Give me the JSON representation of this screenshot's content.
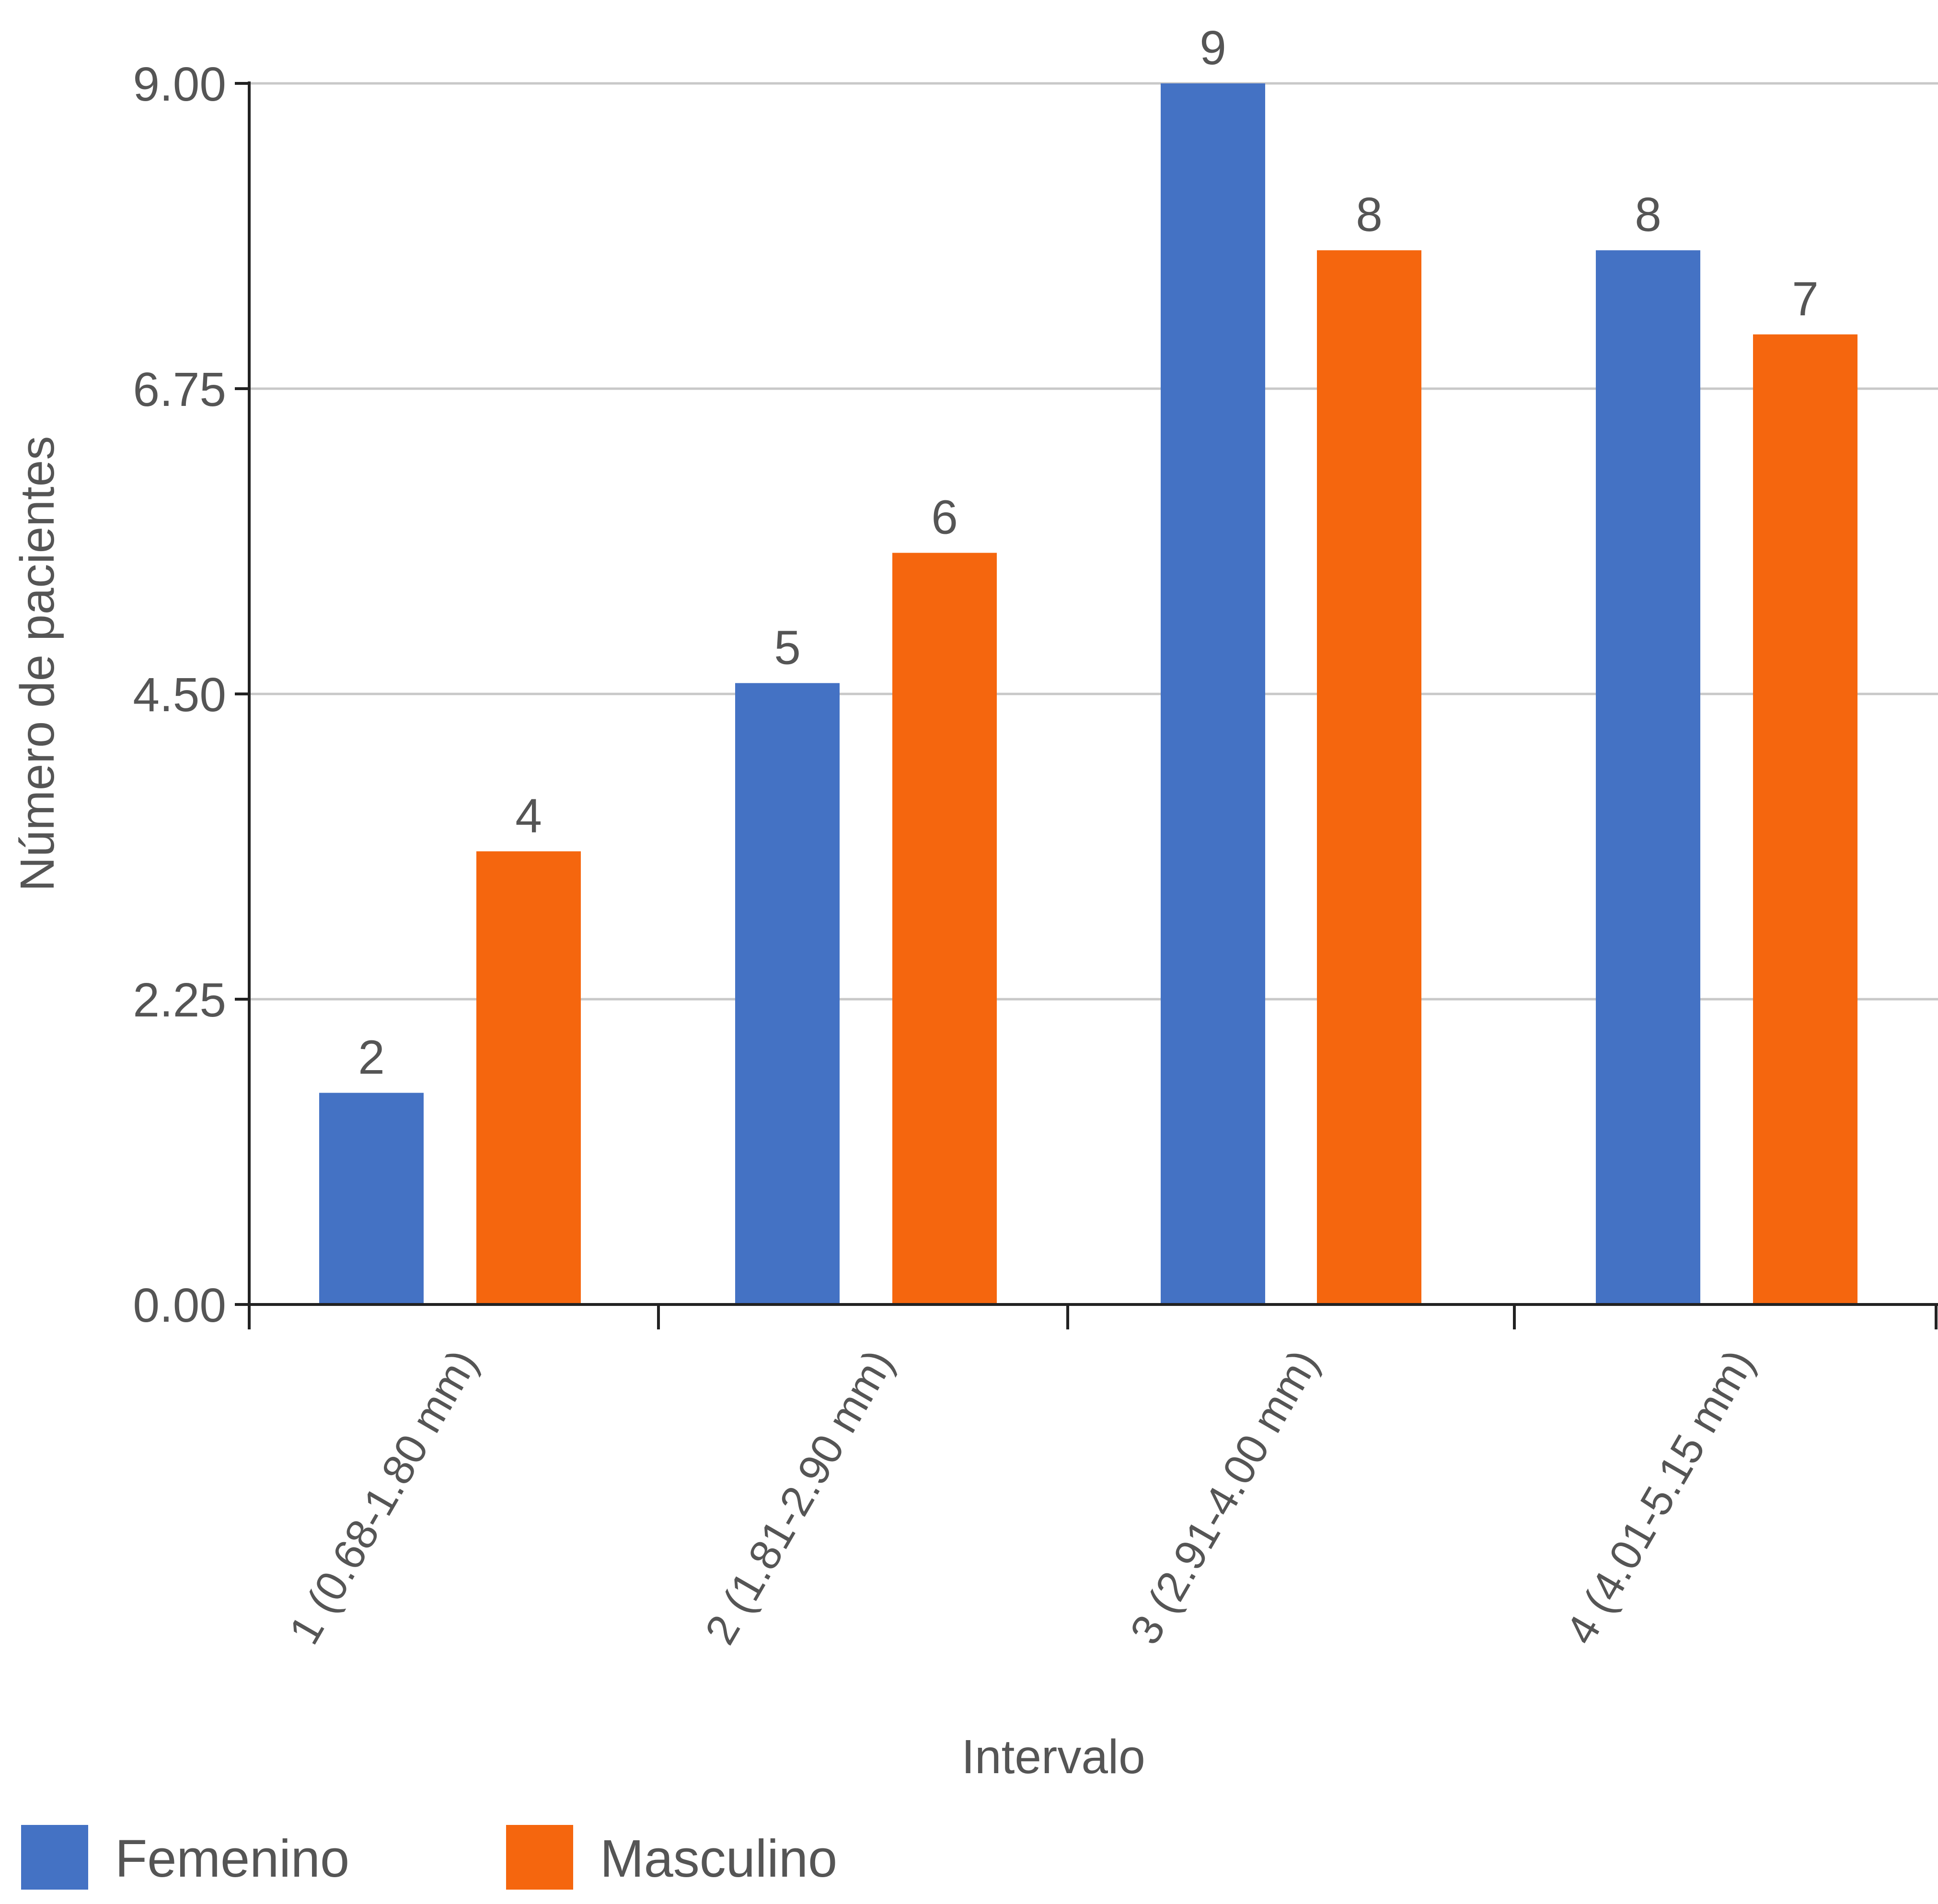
{
  "chart_data": {
    "type": "bar",
    "xlabel": "Intervalo",
    "ylabel": "Número de pacientes",
    "categories": [
      "1 (0.68-1.80 mm)",
      "2 (1.81-2.90 mm)",
      "3 (2.91-4.00 mm)",
      "4 (4.01-5.15 mm)"
    ],
    "series": [
      {
        "name": "Femenino",
        "color": "#4472C4",
        "values": [
          2,
          5,
          9,
          8
        ]
      },
      {
        "name": "Masculino",
        "color": "#F5660E",
        "values": [
          4,
          6,
          8,
          7
        ]
      }
    ],
    "bar_heights": [
      [
        1.56,
        4.58,
        9.0,
        7.77
      ],
      [
        3.34,
        5.54,
        7.77,
        7.15
      ]
    ],
    "ylim": [
      0,
      9
    ],
    "yticks": [
      "0.00",
      "2.25",
      "4.50",
      "6.75",
      "9.00"
    ],
    "grid": true,
    "legend_position": "bottom-left"
  }
}
